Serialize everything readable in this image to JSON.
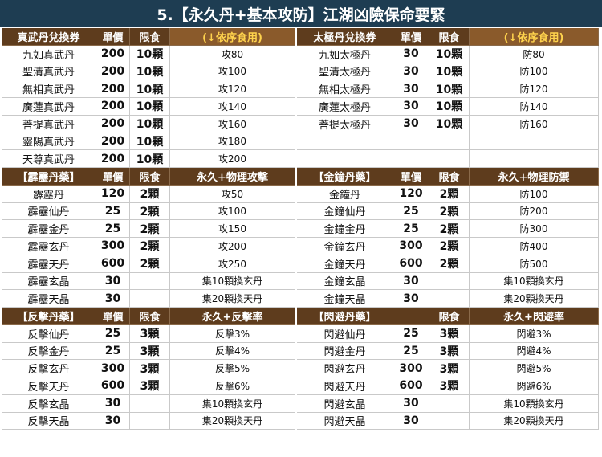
{
  "title": "5.【永久丹+基本攻防】江湖凶險保命要緊",
  "sections": [
    {
      "left": {
        "header": [
          "真武丹兌換券",
          "單價",
          "限食",
          "(↓依序食用)"
        ],
        "rows": [
          [
            "九如真武丹",
            200,
            "10顆",
            "攻80"
          ],
          [
            "聖清真武丹",
            200,
            "10顆",
            "攻100"
          ],
          [
            "無相真武丹",
            200,
            "10顆",
            "攻120"
          ],
          [
            "廣蓮真武丹",
            200,
            "10顆",
            "攻140"
          ],
          [
            "菩提真武丹",
            200,
            "10顆",
            "攻160"
          ],
          [
            "靈陽真武丹",
            200,
            "10顆",
            "攻180"
          ],
          [
            "天尊真武丹",
            200,
            "10顆",
            "攻200"
          ]
        ]
      },
      "right": {
        "header": [
          "太極丹兌換券",
          "單價",
          "限食",
          "(↓依序食用)"
        ],
        "rows": [
          [
            "九如太極丹",
            30,
            "10顆",
            "防80"
          ],
          [
            "聖清太極丹",
            30,
            "10顆",
            "防100"
          ],
          [
            "無相太極丹",
            30,
            "10顆",
            "防120"
          ],
          [
            "廣蓮太極丹",
            30,
            "10顆",
            "防140"
          ],
          [
            "菩提太極丹",
            30,
            "10顆",
            "防160"
          ]
        ]
      }
    },
    {
      "left": {
        "header": [
          "【霹靂丹藥】",
          "單價",
          "限食",
          "永久+物理攻擊"
        ],
        "rows": [
          [
            "霹靂丹",
            120,
            "2顆",
            "攻50"
          ],
          [
            "霹靂仙丹",
            25,
            "2顆",
            "攻100"
          ],
          [
            "霹靂金丹",
            25,
            "2顆",
            "攻150"
          ],
          [
            "霹靂玄丹",
            300,
            "2顆",
            "攻200"
          ],
          [
            "霹靂天丹",
            600,
            "2顆",
            "攻250"
          ],
          [
            "霹靂玄晶",
            30,
            null,
            "集10顆換玄丹"
          ],
          [
            "霹靂天晶",
            30,
            null,
            "集20顆換天丹"
          ]
        ]
      },
      "right": {
        "header": [
          "【金鐘丹藥】",
          "單價",
          "限食",
          "永久+物理防禦"
        ],
        "rows": [
          [
            "金鐘丹",
            120,
            "2顆",
            "防100"
          ],
          [
            "金鐘仙丹",
            25,
            "2顆",
            "防200"
          ],
          [
            "金鐘金丹",
            25,
            "2顆",
            "防300"
          ],
          [
            "金鐘玄丹",
            300,
            "2顆",
            "防400"
          ],
          [
            "金鐘天丹",
            600,
            "2顆",
            "防500"
          ],
          [
            "金鐘玄晶",
            30,
            null,
            "集10顆換玄丹"
          ],
          [
            "金鐘天晶",
            30,
            null,
            "集20顆換天丹"
          ]
        ]
      }
    },
    {
      "left": {
        "header": [
          "【反擊丹藥】",
          "單價",
          "限食",
          "永久+反擊率"
        ],
        "rows": [
          [
            "反擊仙丹",
            25,
            "3顆",
            "反擊3%"
          ],
          [
            "反擊金丹",
            25,
            "3顆",
            "反擊4%"
          ],
          [
            "反擊玄丹",
            300,
            "3顆",
            "反擊5%"
          ],
          [
            "反擊天丹",
            600,
            "3顆",
            "反擊6%"
          ],
          [
            "反擊玄晶",
            30,
            null,
            "集10顆換玄丹"
          ],
          [
            "反擊天晶",
            30,
            null,
            "集20顆換天丹"
          ]
        ]
      },
      "right": {
        "header": [
          "【閃避丹藥】",
          null,
          "限食",
          "永久+閃避率"
        ],
        "rows": [
          [
            "閃避仙丹",
            25,
            "3顆",
            "閃避3%"
          ],
          [
            "閃避金丹",
            25,
            "3顆",
            "閃避4%"
          ],
          [
            "閃避玄丹",
            300,
            "3顆",
            "閃避5%"
          ],
          [
            "閃避天丹",
            600,
            "3顆",
            "閃避6%"
          ],
          [
            "閃避玄晶",
            30,
            null,
            "集10顆換玄丹"
          ],
          [
            "閃避天晶",
            30,
            null,
            "集20顆換天丹"
          ]
        ]
      }
    }
  ]
}
